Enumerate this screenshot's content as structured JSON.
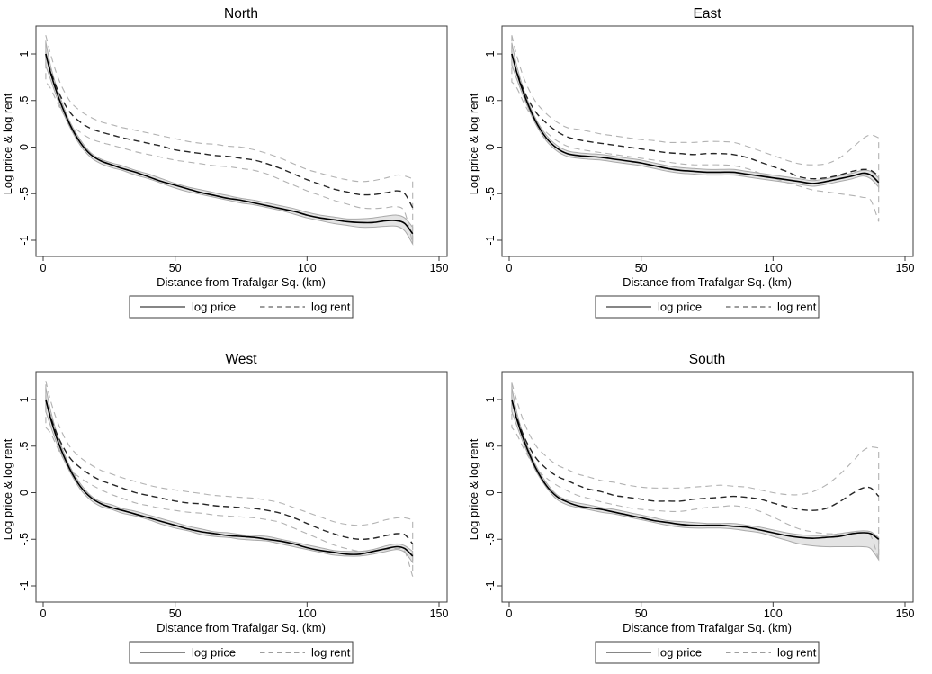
{
  "page": {
    "background": "#ffffff"
  },
  "chart_data": {
    "type": "line",
    "layout": "2x2-grid",
    "panel_order": [
      "North",
      "East",
      "West",
      "South"
    ],
    "xlabel": "Distance from Trafalgar Sq. (km)",
    "ylabel": "Log price & log rent",
    "xticks": [
      0,
      50,
      100,
      150
    ],
    "xtick_labels": [
      "0",
      "50",
      "100",
      "150"
    ],
    "yticks": [
      -1,
      -0.5,
      0,
      0.5,
      1
    ],
    "ytick_labels": [
      "-1",
      "-.5",
      "0",
      ".5",
      "1"
    ],
    "xlim": [
      -3,
      153
    ],
    "ylim": [
      -1.17,
      1.3
    ],
    "grid": false,
    "legend": {
      "position": "below",
      "entries": [
        {
          "label": "log price",
          "line_style": "solid"
        },
        {
          "label": "log rent",
          "line_style": "dashed"
        }
      ]
    },
    "colors": {
      "price_line": "#000000",
      "rent_line": "#262626",
      "ci_line": "#b2b2b2",
      "band_fill": "#e4e4e4",
      "band_edge": "#a9a9a9",
      "axis": "#3d3d3d",
      "text": "#000000"
    },
    "x": [
      1,
      3,
      6,
      10,
      14,
      18,
      22,
      26,
      30,
      35,
      40,
      45,
      50,
      55,
      60,
      65,
      70,
      75,
      80,
      85,
      90,
      95,
      100,
      105,
      110,
      115,
      120,
      125,
      130,
      134,
      137,
      140
    ],
    "panels": [
      {
        "title": "North",
        "price": [
          1.0,
          0.78,
          0.52,
          0.25,
          0.05,
          -0.08,
          -0.15,
          -0.19,
          -0.23,
          -0.27,
          -0.32,
          -0.37,
          -0.41,
          -0.45,
          -0.49,
          -0.52,
          -0.55,
          -0.57,
          -0.6,
          -0.63,
          -0.66,
          -0.69,
          -0.73,
          -0.76,
          -0.78,
          -0.8,
          -0.81,
          -0.81,
          -0.79,
          -0.79,
          -0.82,
          -0.93
        ],
        "price_hi": [
          1.13,
          0.85,
          0.57,
          0.28,
          0.08,
          -0.06,
          -0.13,
          -0.17,
          -0.2,
          -0.25,
          -0.29,
          -0.34,
          -0.39,
          -0.43,
          -0.46,
          -0.49,
          -0.52,
          -0.55,
          -0.57,
          -0.6,
          -0.63,
          -0.66,
          -0.7,
          -0.73,
          -0.75,
          -0.77,
          -0.77,
          -0.76,
          -0.74,
          -0.73,
          -0.76,
          -0.86
        ],
        "price_lo": [
          0.87,
          0.71,
          0.47,
          0.22,
          0.02,
          -0.11,
          -0.18,
          -0.22,
          -0.25,
          -0.3,
          -0.34,
          -0.39,
          -0.44,
          -0.48,
          -0.51,
          -0.54,
          -0.57,
          -0.6,
          -0.62,
          -0.65,
          -0.68,
          -0.72,
          -0.76,
          -0.79,
          -0.82,
          -0.84,
          -0.86,
          -0.86,
          -0.85,
          -0.85,
          -0.9,
          -1.04
        ],
        "rent": [
          1.0,
          0.8,
          0.58,
          0.38,
          0.27,
          0.2,
          0.16,
          0.13,
          0.1,
          0.07,
          0.04,
          0.01,
          -0.03,
          -0.05,
          -0.07,
          -0.09,
          -0.1,
          -0.12,
          -0.14,
          -0.18,
          -0.23,
          -0.29,
          -0.35,
          -0.4,
          -0.45,
          -0.48,
          -0.51,
          -0.51,
          -0.49,
          -0.47,
          -0.5,
          -0.65
        ],
        "rent_hi": [
          1.2,
          0.98,
          0.72,
          0.5,
          0.39,
          0.32,
          0.27,
          0.24,
          0.21,
          0.18,
          0.15,
          0.12,
          0.09,
          0.06,
          0.04,
          0.03,
          0.01,
          0.0,
          -0.03,
          -0.07,
          -0.12,
          -0.18,
          -0.24,
          -0.28,
          -0.32,
          -0.35,
          -0.37,
          -0.36,
          -0.33,
          -0.3,
          -0.31,
          -0.34
        ],
        "rent_lo": [
          0.7,
          0.62,
          0.44,
          0.26,
          0.16,
          0.09,
          0.05,
          0.02,
          -0.01,
          -0.05,
          -0.08,
          -0.11,
          -0.14,
          -0.16,
          -0.18,
          -0.2,
          -0.21,
          -0.23,
          -0.25,
          -0.29,
          -0.35,
          -0.41,
          -0.47,
          -0.52,
          -0.57,
          -0.61,
          -0.65,
          -0.66,
          -0.65,
          -0.64,
          -0.7,
          -1.03
        ]
      },
      {
        "title": "East",
        "price": [
          1.0,
          0.79,
          0.54,
          0.28,
          0.1,
          -0.01,
          -0.07,
          -0.09,
          -0.1,
          -0.11,
          -0.13,
          -0.15,
          -0.17,
          -0.2,
          -0.23,
          -0.25,
          -0.26,
          -0.27,
          -0.27,
          -0.27,
          -0.29,
          -0.31,
          -0.33,
          -0.35,
          -0.37,
          -0.39,
          -0.37,
          -0.34,
          -0.31,
          -0.28,
          -0.3,
          -0.38
        ],
        "price_hi": [
          1.12,
          0.86,
          0.58,
          0.31,
          0.13,
          0.02,
          -0.04,
          -0.06,
          -0.07,
          -0.08,
          -0.1,
          -0.12,
          -0.14,
          -0.17,
          -0.2,
          -0.22,
          -0.23,
          -0.24,
          -0.24,
          -0.24,
          -0.26,
          -0.28,
          -0.3,
          -0.32,
          -0.34,
          -0.36,
          -0.34,
          -0.31,
          -0.28,
          -0.25,
          -0.26,
          -0.33
        ],
        "price_lo": [
          0.88,
          0.72,
          0.5,
          0.25,
          0.07,
          -0.04,
          -0.1,
          -0.12,
          -0.13,
          -0.14,
          -0.16,
          -0.18,
          -0.2,
          -0.23,
          -0.26,
          -0.28,
          -0.29,
          -0.3,
          -0.3,
          -0.3,
          -0.32,
          -0.34,
          -0.36,
          -0.38,
          -0.4,
          -0.42,
          -0.4,
          -0.37,
          -0.34,
          -0.31,
          -0.34,
          -0.43
        ],
        "rent": [
          1.0,
          0.8,
          0.58,
          0.38,
          0.26,
          0.17,
          0.11,
          0.08,
          0.06,
          0.04,
          0.02,
          0.0,
          -0.02,
          -0.04,
          -0.06,
          -0.07,
          -0.08,
          -0.07,
          -0.07,
          -0.08,
          -0.11,
          -0.16,
          -0.21,
          -0.26,
          -0.32,
          -0.34,
          -0.33,
          -0.3,
          -0.26,
          -0.24,
          -0.25,
          -0.31
        ],
        "rent_hi": [
          1.2,
          0.97,
          0.71,
          0.49,
          0.36,
          0.27,
          0.21,
          0.19,
          0.17,
          0.14,
          0.12,
          0.1,
          0.08,
          0.07,
          0.05,
          0.05,
          0.05,
          0.06,
          0.06,
          0.05,
          0.01,
          -0.04,
          -0.09,
          -0.14,
          -0.18,
          -0.19,
          -0.18,
          -0.12,
          -0.01,
          0.09,
          0.13,
          0.1
        ],
        "rent_lo": [
          0.7,
          0.63,
          0.45,
          0.27,
          0.16,
          0.07,
          0.01,
          -0.02,
          -0.04,
          -0.06,
          -0.08,
          -0.1,
          -0.12,
          -0.14,
          -0.16,
          -0.18,
          -0.19,
          -0.19,
          -0.19,
          -0.2,
          -0.23,
          -0.28,
          -0.33,
          -0.38,
          -0.42,
          -0.46,
          -0.48,
          -0.5,
          -0.52,
          -0.54,
          -0.57,
          -0.8
        ]
      },
      {
        "title": "West",
        "price": [
          1.0,
          0.78,
          0.52,
          0.26,
          0.07,
          -0.05,
          -0.12,
          -0.16,
          -0.19,
          -0.23,
          -0.27,
          -0.31,
          -0.35,
          -0.39,
          -0.42,
          -0.44,
          -0.46,
          -0.47,
          -0.48,
          -0.5,
          -0.52,
          -0.55,
          -0.59,
          -0.62,
          -0.64,
          -0.66,
          -0.66,
          -0.63,
          -0.6,
          -0.58,
          -0.6,
          -0.68
        ],
        "price_hi": [
          1.13,
          0.86,
          0.57,
          0.29,
          0.1,
          -0.03,
          -0.1,
          -0.13,
          -0.17,
          -0.2,
          -0.24,
          -0.28,
          -0.32,
          -0.36,
          -0.39,
          -0.42,
          -0.43,
          -0.45,
          -0.46,
          -0.47,
          -0.5,
          -0.53,
          -0.56,
          -0.59,
          -0.62,
          -0.63,
          -0.63,
          -0.61,
          -0.57,
          -0.55,
          -0.57,
          -0.63
        ],
        "price_lo": [
          0.87,
          0.7,
          0.47,
          0.23,
          0.04,
          -0.08,
          -0.15,
          -0.18,
          -0.22,
          -0.25,
          -0.29,
          -0.34,
          -0.38,
          -0.41,
          -0.45,
          -0.47,
          -0.48,
          -0.5,
          -0.51,
          -0.52,
          -0.55,
          -0.58,
          -0.61,
          -0.64,
          -0.67,
          -0.68,
          -0.68,
          -0.66,
          -0.63,
          -0.61,
          -0.64,
          -0.75
        ],
        "rent": [
          1.0,
          0.8,
          0.58,
          0.38,
          0.27,
          0.19,
          0.13,
          0.09,
          0.05,
          0.0,
          -0.03,
          -0.06,
          -0.09,
          -0.11,
          -0.12,
          -0.14,
          -0.15,
          -0.16,
          -0.17,
          -0.19,
          -0.22,
          -0.27,
          -0.33,
          -0.39,
          -0.44,
          -0.48,
          -0.5,
          -0.49,
          -0.46,
          -0.44,
          -0.45,
          -0.55
        ],
        "rent_hi": [
          1.2,
          0.97,
          0.72,
          0.5,
          0.38,
          0.3,
          0.24,
          0.2,
          0.16,
          0.12,
          0.08,
          0.05,
          0.03,
          0.01,
          -0.01,
          -0.03,
          -0.04,
          -0.05,
          -0.06,
          -0.08,
          -0.11,
          -0.16,
          -0.21,
          -0.26,
          -0.31,
          -0.34,
          -0.35,
          -0.33,
          -0.29,
          -0.27,
          -0.27,
          -0.29
        ],
        "rent_lo": [
          0.7,
          0.63,
          0.45,
          0.26,
          0.16,
          0.09,
          0.03,
          -0.02,
          -0.06,
          -0.11,
          -0.14,
          -0.17,
          -0.19,
          -0.21,
          -0.22,
          -0.24,
          -0.25,
          -0.26,
          -0.27,
          -0.29,
          -0.32,
          -0.38,
          -0.44,
          -0.5,
          -0.56,
          -0.6,
          -0.63,
          -0.63,
          -0.61,
          -0.6,
          -0.63,
          -0.9
        ]
      },
      {
        "title": "South",
        "price": [
          1.0,
          0.78,
          0.53,
          0.27,
          0.08,
          -0.04,
          -0.1,
          -0.14,
          -0.16,
          -0.18,
          -0.21,
          -0.24,
          -0.27,
          -0.3,
          -0.32,
          -0.34,
          -0.35,
          -0.35,
          -0.35,
          -0.36,
          -0.37,
          -0.4,
          -0.43,
          -0.46,
          -0.48,
          -0.49,
          -0.48,
          -0.47,
          -0.44,
          -0.43,
          -0.44,
          -0.5
        ],
        "price_hi": [
          1.13,
          0.85,
          0.57,
          0.3,
          0.11,
          -0.02,
          -0.08,
          -0.11,
          -0.13,
          -0.16,
          -0.18,
          -0.21,
          -0.24,
          -0.27,
          -0.3,
          -0.31,
          -0.32,
          -0.33,
          -0.33,
          -0.33,
          -0.35,
          -0.37,
          -0.4,
          -0.43,
          -0.45,
          -0.46,
          -0.46,
          -0.44,
          -0.42,
          -0.41,
          -0.42,
          -0.48
        ],
        "price_lo": [
          0.87,
          0.71,
          0.49,
          0.24,
          0.06,
          -0.07,
          -0.13,
          -0.16,
          -0.18,
          -0.21,
          -0.23,
          -0.26,
          -0.29,
          -0.32,
          -0.35,
          -0.37,
          -0.38,
          -0.38,
          -0.38,
          -0.39,
          -0.41,
          -0.43,
          -0.47,
          -0.51,
          -0.55,
          -0.57,
          -0.58,
          -0.58,
          -0.58,
          -0.58,
          -0.6,
          -0.72
        ],
        "rent": [
          1.0,
          0.8,
          0.58,
          0.38,
          0.26,
          0.18,
          0.13,
          0.08,
          0.04,
          0.01,
          -0.03,
          -0.05,
          -0.07,
          -0.09,
          -0.09,
          -0.09,
          -0.07,
          -0.06,
          -0.05,
          -0.04,
          -0.05,
          -0.07,
          -0.11,
          -0.15,
          -0.18,
          -0.19,
          -0.17,
          -0.1,
          -0.01,
          0.05,
          0.05,
          -0.04
        ],
        "rent_hi": [
          1.18,
          0.98,
          0.73,
          0.51,
          0.39,
          0.3,
          0.25,
          0.2,
          0.17,
          0.13,
          0.11,
          0.08,
          0.06,
          0.05,
          0.05,
          0.05,
          0.06,
          0.07,
          0.08,
          0.07,
          0.06,
          0.03,
          0.0,
          -0.02,
          -0.02,
          0.01,
          0.08,
          0.19,
          0.33,
          0.45,
          0.49,
          0.48
        ],
        "rent_lo": [
          0.7,
          0.62,
          0.45,
          0.27,
          0.16,
          0.08,
          0.02,
          -0.03,
          -0.06,
          -0.1,
          -0.13,
          -0.16,
          -0.18,
          -0.19,
          -0.2,
          -0.2,
          -0.18,
          -0.16,
          -0.15,
          -0.14,
          -0.16,
          -0.2,
          -0.26,
          -0.33,
          -0.39,
          -0.42,
          -0.44,
          -0.44,
          -0.43,
          -0.43,
          -0.46,
          -0.72
        ]
      }
    ]
  }
}
